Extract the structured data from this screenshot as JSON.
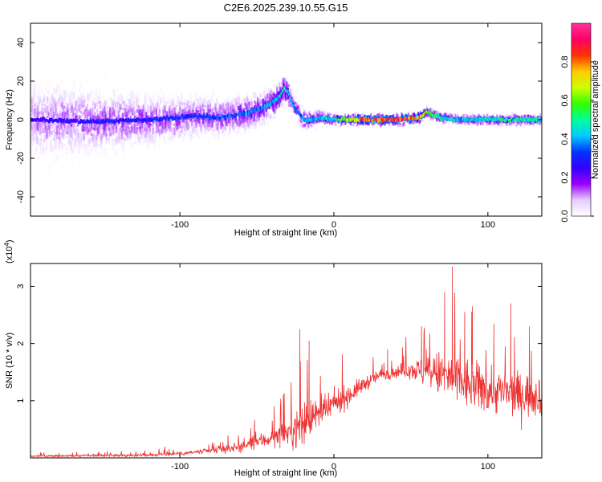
{
  "chart_data": [
    {
      "type": "heatmap",
      "title": "C2E6.2025.239.10.55.G15",
      "xlabel": "Height of straight line (km)",
      "ylabel": "Frequency (Hz)",
      "xlim": [
        -197,
        135
      ],
      "ylim": [
        -50,
        50
      ],
      "xticks": [
        -100,
        0,
        100
      ],
      "yticks": [
        -40,
        -20,
        0,
        20,
        40
      ],
      "colorbar": {
        "label": "Normalized spectral amplitude",
        "range": [
          0,
          1
        ],
        "ticks": [
          0.0,
          0.2,
          0.4,
          0.6,
          0.8
        ],
        "colors": [
          "#ffffff",
          "#e6ccff",
          "#9900ff",
          "#3300ff",
          "#0033ff",
          "#00ccff",
          "#00ff99",
          "#33ff00",
          "#ccff00",
          "#ffcc00",
          "#ff3300",
          "#ff0066",
          "#ff3399"
        ]
      },
      "ridge": {
        "x": [
          -197,
          -160,
          -120,
          -90,
          -75,
          -60,
          -50,
          -42,
          -36,
          -33,
          -30,
          -28,
          -25,
          -22,
          -20,
          -15,
          -10,
          0,
          20,
          40,
          55,
          60,
          65,
          70,
          80,
          100,
          120,
          135
        ],
        "freq": [
          0,
          -1,
          0,
          2,
          1,
          3,
          5,
          8,
          12,
          16,
          14,
          9,
          5,
          2,
          0,
          0,
          1,
          0,
          0,
          0,
          1,
          4,
          2,
          1,
          0,
          0,
          0,
          0
        ],
        "amplitude": [
          0.25,
          0.3,
          0.32,
          0.35,
          0.35,
          0.4,
          0.42,
          0.45,
          0.5,
          0.5,
          0.48,
          0.45,
          0.4,
          0.4,
          0.45,
          0.45,
          0.45,
          0.5,
          0.9,
          0.92,
          0.85,
          0.65,
          0.55,
          0.5,
          0.45,
          0.5,
          0.55,
          0.5
        ]
      },
      "spread_hz": {
        "x": [
          -197,
          -150,
          -100,
          -60,
          -30,
          -20,
          0,
          50,
          100,
          135
        ],
        "values": [
          22,
          18,
          12,
          10,
          8,
          6,
          3,
          3,
          3,
          3
        ]
      }
    },
    {
      "type": "line",
      "title": "",
      "xlabel": "Height of straight line (km)",
      "ylabel": "SNR (10 * v/v)",
      "multiplier": "(x10",
      "multiplier_exp": "4",
      "multiplier_close": ")",
      "xlim": [
        -197,
        135
      ],
      "ylim": [
        0,
        3.4
      ],
      "xticks": [
        -100,
        0,
        100
      ],
      "yticks": [
        1,
        2,
        3
      ],
      "color": "#ee3333",
      "envelope": {
        "x": [
          -197,
          -160,
          -120,
          -100,
          -80,
          -60,
          -50,
          -40,
          -30,
          -25,
          -20,
          -15,
          -10,
          -5,
          0,
          10,
          20,
          30,
          40,
          50,
          60,
          70,
          80,
          90,
          100,
          110,
          120,
          135
        ],
        "base": [
          0.03,
          0.04,
          0.05,
          0.08,
          0.12,
          0.2,
          0.28,
          0.35,
          0.45,
          0.5,
          0.6,
          0.7,
          0.75,
          0.82,
          0.95,
          1.1,
          1.3,
          1.45,
          1.5,
          1.55,
          1.5,
          1.45,
          1.35,
          1.25,
          1.2,
          1.15,
          1.1,
          1.1
        ],
        "noise": [
          0.03,
          0.04,
          0.05,
          0.07,
          0.1,
          0.18,
          0.25,
          0.3,
          0.4,
          0.6,
          0.9,
          0.55,
          0.45,
          0.45,
          0.45,
          0.35,
          0.25,
          0.2,
          0.2,
          0.3,
          0.55,
          0.8,
          0.9,
          0.85,
          0.8,
          0.75,
          0.75,
          0.7
        ]
      },
      "spikes": [
        {
          "x": -22,
          "y": 2.25
        },
        {
          "x": -16,
          "y": 2.05
        },
        {
          "x": 35,
          "y": 1.9
        },
        {
          "x": 57,
          "y": 2.3
        },
        {
          "x": 72,
          "y": 2.9
        },
        {
          "x": 77,
          "y": 3.35
        },
        {
          "x": 85,
          "y": 2.55
        },
        {
          "x": 90,
          "y": 2.65
        },
        {
          "x": 104,
          "y": 2.35
        },
        {
          "x": 115,
          "y": 2.7
        },
        {
          "x": 127,
          "y": 2.3
        }
      ]
    }
  ]
}
